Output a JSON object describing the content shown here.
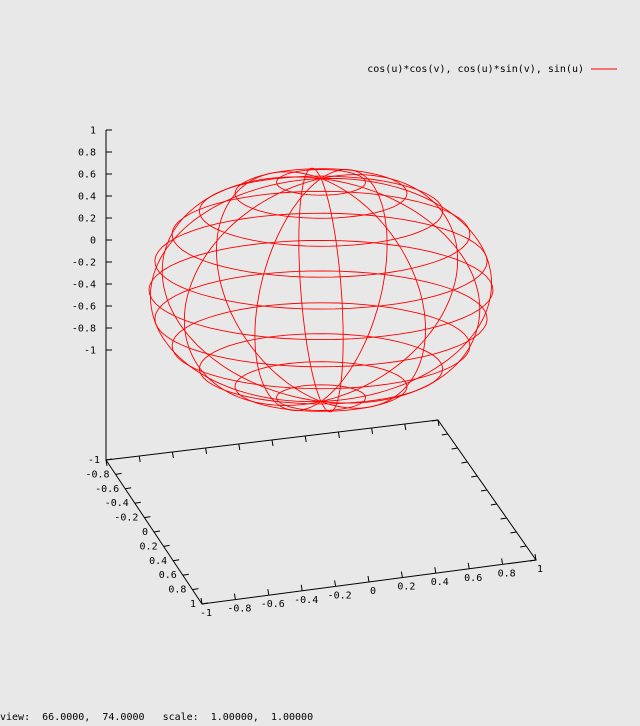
{
  "chart_data": {
    "type": "surface3d-wireframe",
    "series": [
      {
        "name": "cos(u)*cos(v), cos(u)*sin(v), sin(u)",
        "color": "#ff0000",
        "parametric": {
          "x": "cos(u)*cos(v)",
          "y": "cos(u)*sin(v)",
          "z": "sin(u)"
        }
      }
    ],
    "x_ticks": [
      "-1",
      "-0.8",
      "-0.6",
      "-0.4",
      "-0.2",
      "0",
      "0.2",
      "0.4",
      "0.6",
      "0.8",
      "1"
    ],
    "y_ticks": [
      "-1",
      "-0.8",
      "-0.6",
      "-0.4",
      "-0.2",
      "0",
      "0.2",
      "0.4",
      "0.6",
      "0.8",
      "1"
    ],
    "z_ticks": [
      "1",
      "0.8",
      "0.6",
      "0.4",
      "0.2",
      "0",
      "-0.2",
      "-0.4",
      "-0.6",
      "-0.8",
      "-1"
    ],
    "xlim": [
      -1,
      1
    ],
    "ylim": [
      -1,
      1
    ],
    "zlim": [
      -1,
      1
    ],
    "view": {
      "rot_x": 66,
      "rot_z": 74,
      "scale": 1,
      "scale_z": 1
    },
    "legend_position": "top-right",
    "grid": false
  },
  "status": {
    "view_label": "view:",
    "view_value": "66.0000,  74.0000",
    "scale_label": "scale:",
    "scale_value": "1.00000,  1.00000"
  }
}
